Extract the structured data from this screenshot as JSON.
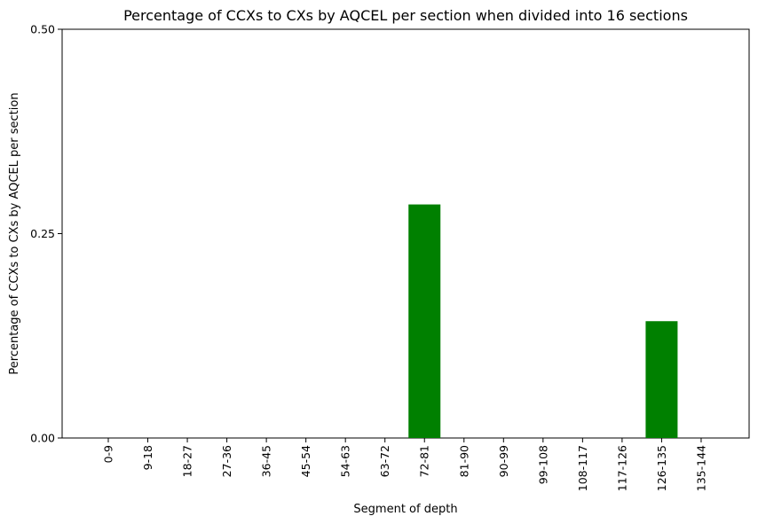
{
  "chart_data": {
    "type": "bar",
    "title": "Percentage of CCXs to CXs by AQCEL per section when divided into 16 sections",
    "xlabel": "Segment of depth",
    "ylabel": "Percentage of CCXs to CXs by AQCEL per section",
    "categories": [
      "0-9",
      "9-18",
      "18-27",
      "27-36",
      "36-45",
      "45-54",
      "54-63",
      "63-72",
      "72-81",
      "81-90",
      "90-99",
      "99-108",
      "108-117",
      "117-126",
      "126-135",
      "135-144"
    ],
    "values": [
      0,
      0,
      0,
      0,
      0,
      0,
      0,
      0,
      0.2857,
      0,
      0,
      0,
      0,
      0,
      0.1429,
      0
    ],
    "ylim": [
      0,
      0.5
    ],
    "yticks": [
      "0.00",
      "0.25",
      "0.50"
    ],
    "ytick_values": [
      0,
      0.25,
      0.5
    ],
    "bar_color": "#008000",
    "grid": false,
    "x_tick_rotation": "vertical"
  }
}
